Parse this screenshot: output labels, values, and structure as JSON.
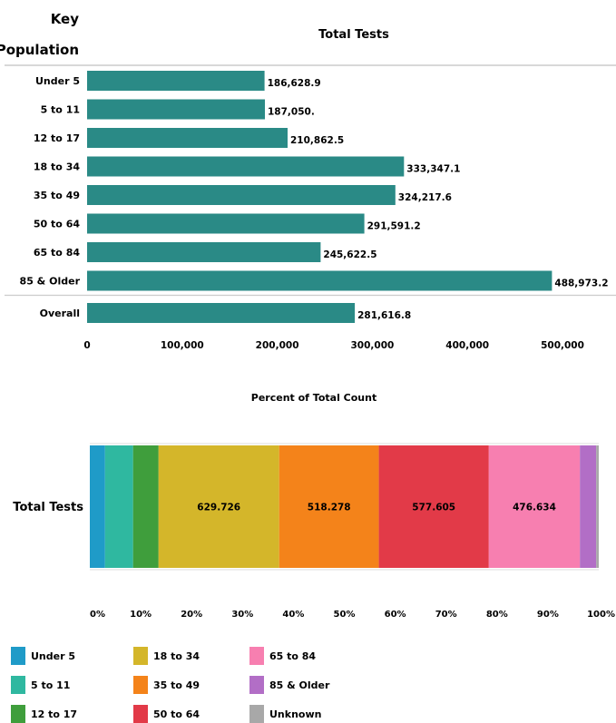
{
  "chart_data": [
    {
      "type": "bar",
      "orientation": "horizontal",
      "title": "Total Tests",
      "row_header": "Key\nPopulation",
      "categories": [
        "Under 5",
        "5 to 11",
        "12 to 17",
        "18 to 34",
        "35 to 49",
        "50 to 64",
        "65 to 84",
        "85 & Older",
        "Overall"
      ],
      "values": [
        186628.9,
        187050,
        210862.5,
        333347.1,
        324217.6,
        291591.2,
        245622.5,
        488973.2,
        281616.8
      ],
      "value_labels": [
        "186,628.9",
        "187,050.",
        "210,862.5",
        "333,347.1",
        "324,217.6",
        "291,591.2",
        "245,622.5",
        "488,973.2",
        "281,616.8"
      ],
      "x_ticks": [
        0,
        100000,
        200000,
        300000,
        400000,
        500000
      ],
      "x_tick_labels": [
        "0",
        "100,000",
        "200,000",
        "300,000",
        "400,000",
        "500,000"
      ],
      "xlim": [
        0,
        500000
      ],
      "color": "#2a8a86"
    },
    {
      "type": "bar",
      "orientation": "horizontal",
      "stacked": "percent",
      "title": "Percent of Total Count",
      "row_label": "Total Tests",
      "segments": [
        {
          "name": "Under 5",
          "percent": 3.0,
          "label": "",
          "color": "#1f9bc8"
        },
        {
          "name": "5 to 11",
          "percent": 5.5,
          "label": "",
          "color": "#2fb8a0"
        },
        {
          "name": "12 to 17",
          "percent": 5.0,
          "label": "",
          "color": "#3f9e3c"
        },
        {
          "name": "18 to 34",
          "percent": 23.7,
          "label": "629.726",
          "color": "#d4b62a"
        },
        {
          "name": "35 to 49",
          "percent": 19.6,
          "label": "518.278",
          "color": "#f4831a"
        },
        {
          "name": "50 to 64",
          "percent": 21.6,
          "label": "577.605",
          "color": "#e23a48"
        },
        {
          "name": "65 to 84",
          "percent": 17.9,
          "label": "476.634",
          "color": "#f77fb0"
        },
        {
          "name": "85 & Older",
          "percent": 3.2,
          "label": "",
          "color": "#b26ec6"
        },
        {
          "name": "Unknown",
          "percent": 0.5,
          "label": "",
          "color": "#a8a8a8"
        }
      ],
      "x_ticks": [
        0,
        10,
        20,
        30,
        40,
        50,
        60,
        70,
        80,
        90,
        100
      ],
      "x_tick_labels": [
        "0%",
        "10%",
        "20%",
        "30%",
        "40%",
        "50%",
        "60%",
        "70%",
        "80%",
        "90%",
        "100%"
      ],
      "xlim": [
        0,
        100
      ]
    }
  ],
  "legend": {
    "items": [
      {
        "label": "Under 5",
        "color": "#1f9bc8"
      },
      {
        "label": "5 to 11",
        "color": "#2fb8a0"
      },
      {
        "label": "12 to 17",
        "color": "#3f9e3c"
      },
      {
        "label": "18 to 34",
        "color": "#d4b62a"
      },
      {
        "label": "35 to 49",
        "color": "#f4831a"
      },
      {
        "label": "50 to 64",
        "color": "#e23a48"
      },
      {
        "label": "65 to 84",
        "color": "#f77fb0"
      },
      {
        "label": "85 & Older",
        "color": "#b26ec6"
      },
      {
        "label": "Unknown",
        "color": "#a8a8a8"
      }
    ]
  }
}
